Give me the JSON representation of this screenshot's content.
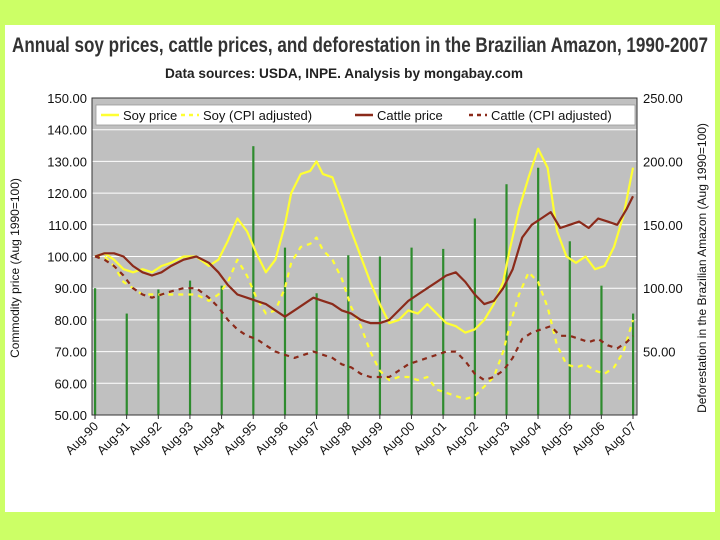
{
  "chart_data": {
    "type": "bar",
    "title": "Annual soy prices, cattle prices, and deforestation in the Brazilian Amazon, 1990-2007",
    "subtitle": "Data sources: USDA, INPE. Analysis by mongabay.com",
    "ylabel": "Commodity price (Aug 1990=100)",
    "y2label": "Deforestation in the Brazilian Amazon (Aug 1990=100)",
    "ylim": [
      50,
      150
    ],
    "y2lim": [
      0,
      250
    ],
    "yticks": [
      "50.00",
      "60.00",
      "70.00",
      "80.00",
      "90.00",
      "100.00",
      "110.00",
      "120.00",
      "130.00",
      "140.00",
      "150.00"
    ],
    "y2ticks": [
      "50.00",
      "100.00",
      "150.00",
      "200.00",
      "250.00"
    ],
    "categories": [
      "Aug-90",
      "Aug-91",
      "Aug-92",
      "Aug-93",
      "Aug-94",
      "Aug-95",
      "Aug-96",
      "Aug-97",
      "Aug-98",
      "Aug-99",
      "Aug-00",
      "Aug-01",
      "Aug-02",
      "Aug-03",
      "Aug-04",
      "Aug-05",
      "Aug-06",
      "Aug-07"
    ],
    "legend_position": "top",
    "grid": true,
    "background": "#c0c0c0",
    "bars": {
      "name": "Deforestation",
      "color": "#2e8b2e",
      "values": [
        100,
        80,
        99,
        106,
        102,
        212,
        132,
        96,
        126,
        125,
        132,
        131,
        155,
        182,
        195,
        137,
        102,
        80
      ]
    },
    "series": [
      {
        "name": "Soy price",
        "color": "#ffff33",
        "style": "solid",
        "x": [
          0,
          0.3,
          0.6,
          0.9,
          1.2,
          1.5,
          1.8,
          2.1,
          2.4,
          2.8,
          3.2,
          3.6,
          3.9,
          4.2,
          4.5,
          4.8,
          5.1,
          5.4,
          5.7,
          6.0,
          6.2,
          6.5,
          6.8,
          7.0,
          7.2,
          7.5,
          7.8,
          8.1,
          8.4,
          8.7,
          9.0,
          9.3,
          9.6,
          9.9,
          10.2,
          10.5,
          10.8,
          11.1,
          11.4,
          11.7,
          12.0,
          12.3,
          12.6,
          12.9,
          13.1,
          13.4,
          13.7,
          14.0,
          14.3,
          14.6,
          14.9,
          15.2,
          15.5,
          15.8,
          16.1,
          16.4,
          16.7,
          17.0
        ],
        "values": [
          100,
          101,
          99,
          96,
          95,
          96,
          95,
          97,
          98,
          100,
          100,
          97,
          99,
          105,
          112,
          108,
          101,
          95,
          99,
          110,
          120,
          126,
          127,
          130,
          126,
          125,
          117,
          108,
          100,
          92,
          85,
          79,
          80,
          83,
          82,
          85,
          82,
          79,
          78,
          76,
          77,
          80,
          85,
          92,
          102,
          115,
          125,
          134,
          128,
          108,
          100,
          98,
          100,
          96,
          97,
          103,
          113,
          128
        ]
      },
      {
        "name": "Soy (CPI adjusted)",
        "color": "#ffff33",
        "style": "dashed",
        "x": [
          0,
          0.3,
          0.6,
          0.9,
          1.2,
          1.5,
          1.8,
          2.1,
          2.4,
          2.8,
          3.2,
          3.6,
          3.9,
          4.2,
          4.5,
          4.8,
          5.1,
          5.4,
          5.7,
          6.0,
          6.2,
          6.5,
          6.8,
          7.0,
          7.2,
          7.5,
          7.8,
          8.1,
          8.4,
          8.7,
          9.0,
          9.3,
          9.6,
          9.9,
          10.2,
          10.5,
          10.8,
          11.1,
          11.4,
          11.7,
          12.0,
          12.3,
          12.6,
          12.9,
          13.1,
          13.4,
          13.7,
          14.0,
          14.3,
          14.6,
          14.9,
          15.2,
          15.5,
          15.8,
          16.1,
          16.4,
          16.7,
          17.0
        ],
        "values": [
          100,
          100,
          97,
          92,
          90,
          88,
          88,
          88,
          88,
          88,
          88,
          86,
          88,
          92,
          99,
          94,
          87,
          82,
          83,
          90,
          98,
          103,
          104,
          106,
          102,
          99,
          93,
          84,
          78,
          70,
          64,
          61,
          62,
          62,
          61,
          62,
          58,
          57,
          56,
          55,
          56,
          59,
          62,
          70,
          78,
          88,
          95,
          92,
          84,
          72,
          66,
          65,
          66,
          64,
          63,
          65,
          70,
          80
        ]
      },
      {
        "name": "Cattle price",
        "color": "#8b2a1a",
        "style": "solid",
        "x": [
          0,
          0.3,
          0.6,
          0.9,
          1.2,
          1.5,
          1.8,
          2.1,
          2.4,
          2.8,
          3.2,
          3.6,
          3.9,
          4.2,
          4.5,
          4.8,
          5.1,
          5.4,
          5.7,
          6.0,
          6.3,
          6.6,
          6.9,
          7.2,
          7.5,
          7.8,
          8.1,
          8.4,
          8.7,
          9.0,
          9.3,
          9.6,
          9.9,
          10.2,
          10.5,
          10.8,
          11.1,
          11.4,
          11.7,
          12.0,
          12.3,
          12.6,
          12.9,
          13.2,
          13.5,
          13.8,
          14.1,
          14.4,
          14.7,
          15.0,
          15.3,
          15.6,
          15.9,
          16.2,
          16.5,
          16.8,
          17.0
        ],
        "values": [
          100,
          101,
          101,
          100,
          97,
          95,
          94,
          95,
          97,
          99,
          100,
          98,
          95,
          91,
          88,
          87,
          86,
          85,
          83,
          81,
          83,
          85,
          87,
          86,
          85,
          83,
          82,
          80,
          79,
          79,
          80,
          83,
          86,
          88,
          90,
          92,
          94,
          95,
          92,
          88,
          85,
          86,
          90,
          96,
          106,
          110,
          112,
          114,
          109,
          110,
          111,
          109,
          112,
          111,
          110,
          115,
          119
        ]
      },
      {
        "name": "Cattle (CPI adjusted)",
        "color": "#8b2a1a",
        "style": "dashed",
        "x": [
          0,
          0.3,
          0.6,
          0.9,
          1.2,
          1.5,
          1.8,
          2.1,
          2.4,
          2.8,
          3.2,
          3.6,
          3.9,
          4.2,
          4.5,
          4.8,
          5.1,
          5.4,
          5.7,
          6.0,
          6.3,
          6.6,
          6.9,
          7.2,
          7.5,
          7.8,
          8.1,
          8.4,
          8.7,
          9.0,
          9.3,
          9.6,
          9.9,
          10.2,
          10.5,
          10.8,
          11.1,
          11.4,
          11.7,
          12.0,
          12.3,
          12.6,
          12.9,
          13.2,
          13.5,
          13.8,
          14.1,
          14.4,
          14.7,
          15.0,
          15.3,
          15.6,
          15.9,
          16.2,
          16.5,
          16.8,
          17.0
        ],
        "values": [
          100,
          99,
          97,
          94,
          90,
          88,
          87,
          88,
          89,
          90,
          90,
          87,
          84,
          80,
          77,
          75,
          74,
          72,
          70,
          69,
          68,
          69,
          70,
          69,
          68,
          66,
          65,
          63,
          62,
          62,
          62,
          64,
          66,
          67,
          68,
          69,
          70,
          70,
          67,
          63,
          61,
          62,
          64,
          68,
          74,
          76,
          77,
          78,
          75,
          75,
          74,
          73,
          74,
          72,
          71,
          73,
          75
        ]
      }
    ]
  }
}
